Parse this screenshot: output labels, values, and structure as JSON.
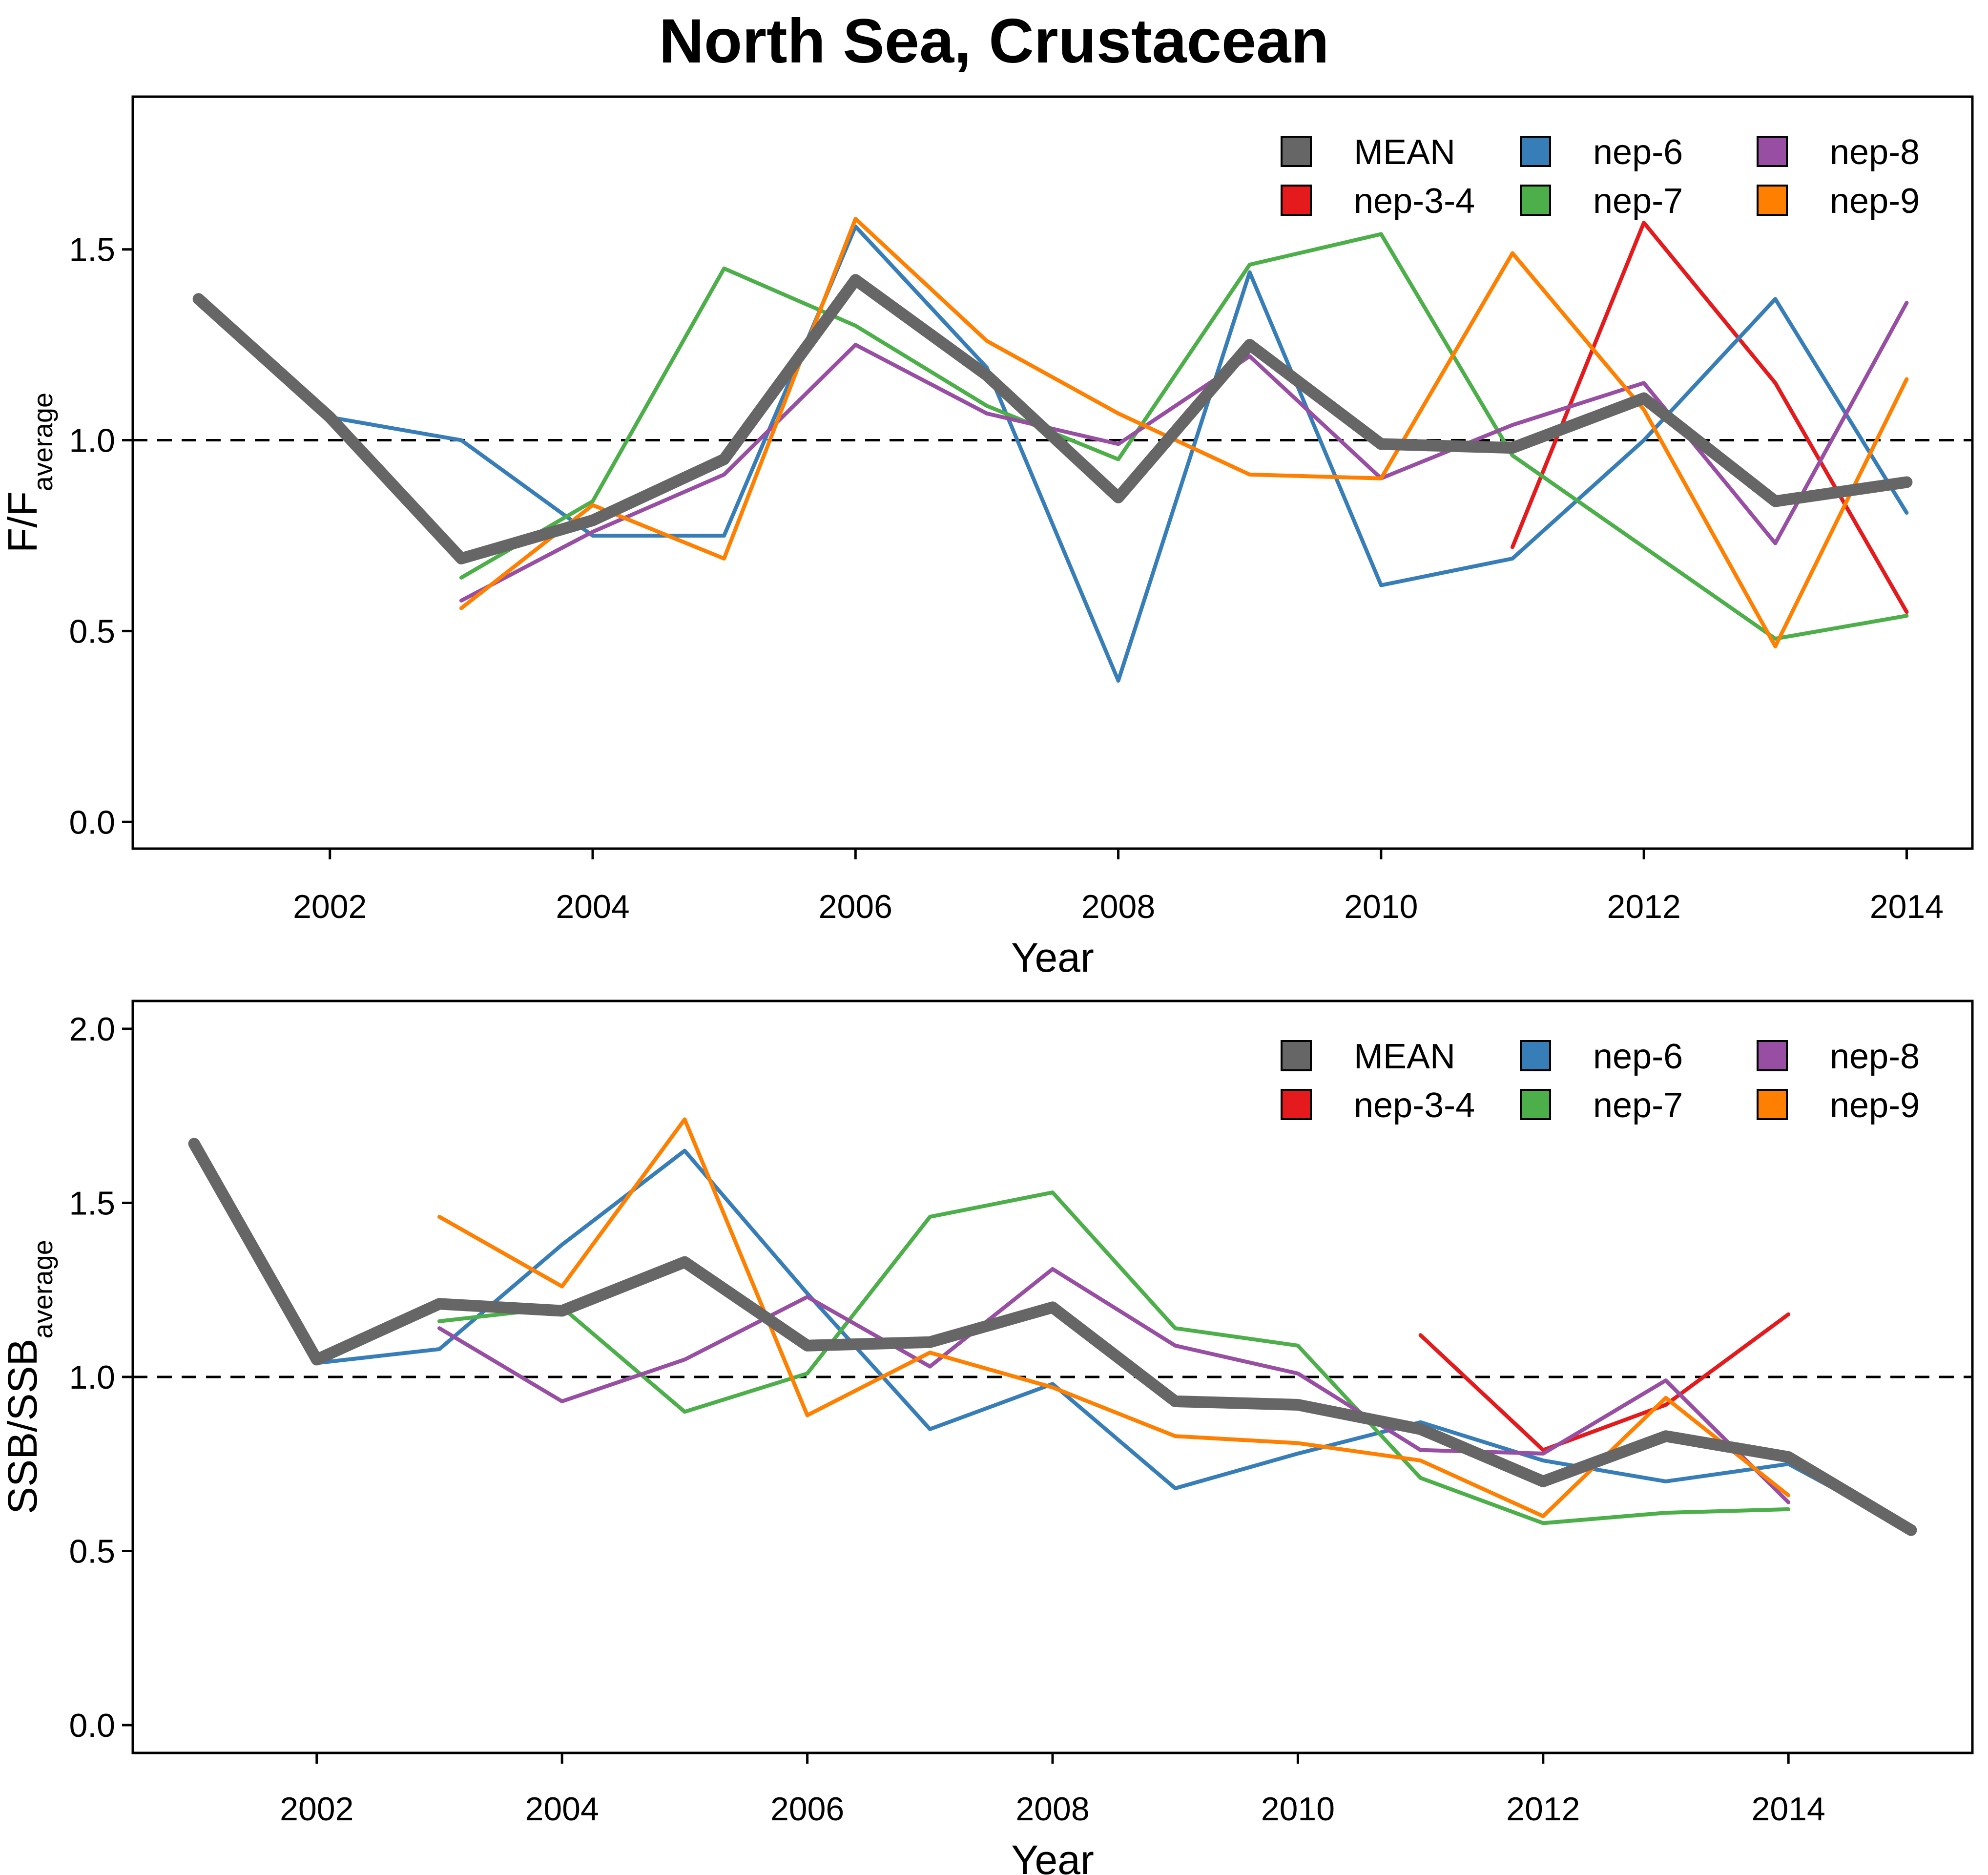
{
  "title": "North Sea, Crustacean",
  "colors": {
    "MEAN": "#666666",
    "nep-3-4": "#e41a1c",
    "nep-6": "#377eb8",
    "nep-7": "#4daf4a",
    "nep-8": "#984ea3",
    "nep-9": "#ff7f00"
  },
  "chart_data": [
    {
      "type": "line",
      "xlabel": "Year",
      "ylabel_main": "F/F",
      "ylabel_sub": "average",
      "ylim": [
        -0.07,
        1.9
      ],
      "xlim": [
        2000.5,
        2014.5
      ],
      "yticks": [
        "0.0",
        "0.5",
        "1.0",
        "1.5"
      ],
      "xticks": [
        "2002",
        "2004",
        "2006",
        "2008",
        "2010",
        "2012",
        "2014"
      ],
      "reference_line": 1.0,
      "legend": [
        "MEAN",
        "nep-6",
        "nep-8",
        "nep-3-4",
        "nep-7",
        "nep-9"
      ],
      "legend_placement": "top-right",
      "series": [
        {
          "name": "MEAN",
          "x": [
            2001,
            2002,
            2003,
            2004,
            2005,
            2006,
            2007,
            2008,
            2009,
            2010,
            2011,
            2012,
            2013,
            2014
          ],
          "values": [
            1.37,
            1.06,
            0.69,
            0.79,
            0.95,
            1.42,
            1.17,
            0.85,
            1.25,
            0.99,
            0.98,
            1.11,
            0.84,
            0.89
          ]
        },
        {
          "name": "nep-3-4",
          "x": [
            2011,
            2012,
            2013,
            2014
          ],
          "values": [
            0.72,
            1.57,
            1.15,
            0.55
          ]
        },
        {
          "name": "nep-6",
          "x": [
            2001,
            2002,
            2003,
            2004,
            2005,
            2006,
            2007,
            2008,
            2009,
            2010,
            2011,
            2012,
            2013,
            2014
          ],
          "values": [
            1.37,
            1.06,
            1.0,
            0.75,
            0.75,
            1.56,
            1.19,
            0.37,
            1.44,
            0.62,
            0.69,
            1.0,
            1.37,
            0.81
          ]
        },
        {
          "name": "nep-7",
          "x": [
            2003,
            2004,
            2005,
            2006,
            2007,
            2008,
            2009,
            2010,
            2011,
            2012,
            2013,
            2014
          ],
          "values": [
            0.64,
            0.84,
            1.45,
            1.3,
            1.09,
            0.95,
            1.46,
            1.54,
            0.96,
            0.72,
            0.48,
            0.54
          ]
        },
        {
          "name": "nep-8",
          "x": [
            2003,
            2004,
            2005,
            2006,
            2007,
            2008,
            2009,
            2010,
            2011,
            2012,
            2013,
            2014
          ],
          "values": [
            0.58,
            0.76,
            0.91,
            1.25,
            1.07,
            0.99,
            1.22,
            0.9,
            1.04,
            1.15,
            0.73,
            1.36
          ]
        },
        {
          "name": "nep-9",
          "x": [
            2003,
            2004,
            2005,
            2006,
            2007,
            2008,
            2009,
            2010,
            2011,
            2012,
            2013,
            2014
          ],
          "values": [
            0.56,
            0.83,
            0.69,
            1.58,
            1.26,
            1.07,
            0.91,
            0.9,
            1.49,
            1.08,
            0.46,
            1.16
          ]
        }
      ]
    },
    {
      "type": "line",
      "xlabel": "Year",
      "ylabel_main": "SSB/SSB",
      "ylabel_sub": "average",
      "ylim": [
        -0.08,
        2.08
      ],
      "xlim": [
        2000.5,
        2015.5
      ],
      "yticks": [
        "0.0",
        "0.5",
        "1.0",
        "1.5",
        "2.0"
      ],
      "xticks": [
        "2002",
        "2004",
        "2006",
        "2008",
        "2010",
        "2012",
        "2014"
      ],
      "reference_line": 1.0,
      "legend": [
        "MEAN",
        "nep-6",
        "nep-8",
        "nep-3-4",
        "nep-7",
        "nep-9"
      ],
      "legend_placement": "top-right",
      "series": [
        {
          "name": "MEAN",
          "x": [
            2001,
            2002,
            2003,
            2004,
            2005,
            2006,
            2007,
            2008,
            2009,
            2010,
            2011,
            2012,
            2013,
            2014,
            2015
          ],
          "values": [
            1.67,
            1.05,
            1.21,
            1.19,
            1.33,
            1.09,
            1.1,
            1.2,
            0.93,
            0.92,
            0.85,
            0.7,
            0.83,
            0.77,
            0.56
          ]
        },
        {
          "name": "nep-3-4",
          "x": [
            2011,
            2012,
            2013,
            2014
          ],
          "values": [
            1.12,
            0.79,
            0.92,
            1.18
          ]
        },
        {
          "name": "nep-6",
          "x": [
            2001,
            2002,
            2003,
            2004,
            2005,
            2006,
            2007,
            2008,
            2009,
            2010,
            2011,
            2012,
            2013,
            2014,
            2015
          ],
          "values": [
            1.67,
            1.04,
            1.08,
            1.38,
            1.65,
            1.24,
            0.85,
            0.98,
            0.68,
            0.78,
            0.87,
            0.76,
            0.7,
            0.75,
            0.56
          ]
        },
        {
          "name": "nep-7",
          "x": [
            2003,
            2004,
            2005,
            2006,
            2007,
            2008,
            2009,
            2010,
            2011,
            2012,
            2013,
            2014
          ],
          "values": [
            1.16,
            1.2,
            0.9,
            1.01,
            1.46,
            1.53,
            1.14,
            1.09,
            0.71,
            0.58,
            0.61,
            0.62
          ]
        },
        {
          "name": "nep-8",
          "x": [
            2003,
            2004,
            2005,
            2006,
            2007,
            2008,
            2009,
            2010,
            2011,
            2012,
            2013,
            2014
          ],
          "values": [
            1.14,
            0.93,
            1.05,
            1.23,
            1.03,
            1.31,
            1.09,
            1.01,
            0.79,
            0.78,
            0.99,
            0.64
          ]
        },
        {
          "name": "nep-9",
          "x": [
            2003,
            2004,
            2005,
            2006,
            2007,
            2008,
            2009,
            2010,
            2011,
            2012,
            2013,
            2014
          ],
          "values": [
            1.46,
            1.26,
            1.74,
            0.89,
            1.07,
            0.97,
            0.83,
            0.81,
            0.76,
            0.6,
            0.94,
            0.66
          ]
        }
      ]
    }
  ]
}
